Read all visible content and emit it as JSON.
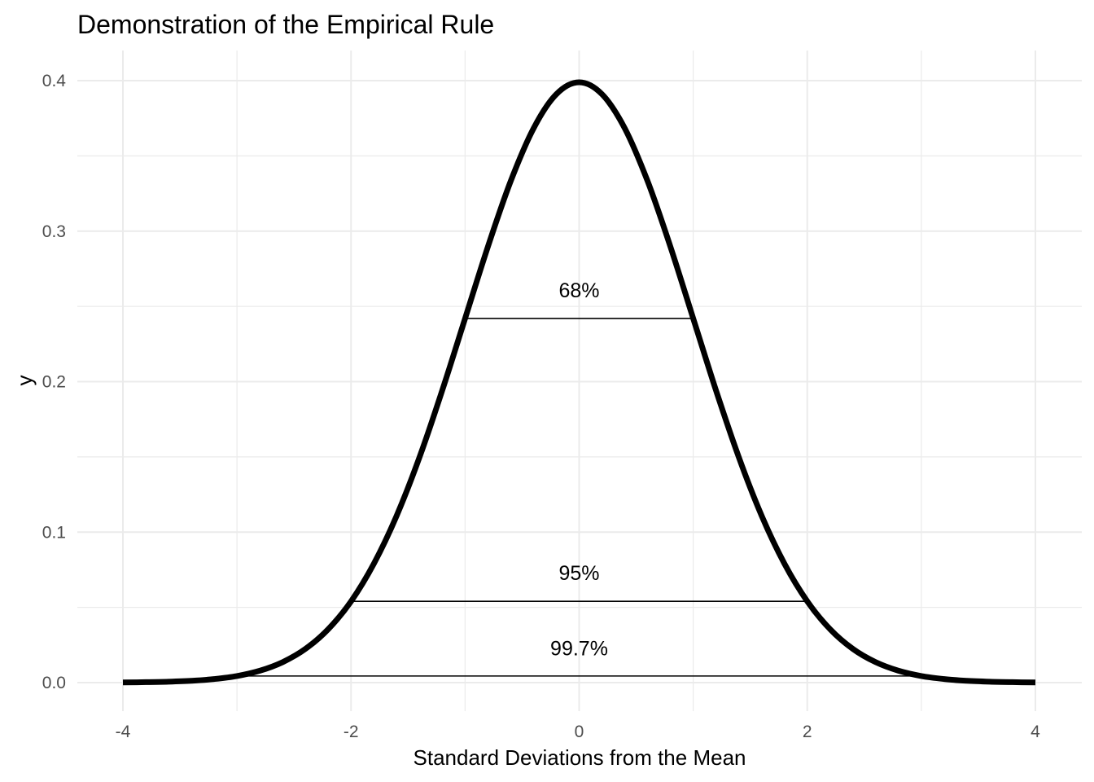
{
  "chart_data": {
    "type": "line",
    "title": "Demonstration of the Empirical Rule",
    "xlabel": "Standard Deviations from the Mean",
    "ylabel": "y",
    "xlim": [
      -4,
      4
    ],
    "ylim": [
      0,
      0.4
    ],
    "grid": true,
    "legend": "none",
    "x_ticks": [
      {
        "value": -4,
        "label": "-4"
      },
      {
        "value": -2,
        "label": "-2"
      },
      {
        "value": 0,
        "label": "0"
      },
      {
        "value": 2,
        "label": "2"
      },
      {
        "value": 4,
        "label": "4"
      }
    ],
    "y_ticks": [
      {
        "value": 0.0,
        "label": "0.0"
      },
      {
        "value": 0.1,
        "label": "0.1"
      },
      {
        "value": 0.2,
        "label": "0.2"
      },
      {
        "value": 0.3,
        "label": "0.3"
      },
      {
        "value": 0.4,
        "label": "0.4"
      }
    ],
    "series": [
      {
        "x": [
          -4.0,
          -3.8,
          -3.6,
          -3.4,
          -3.2,
          -3.0,
          -2.8,
          -2.6,
          -2.4,
          -2.2,
          -2.0,
          -1.8,
          -1.6,
          -1.4,
          -1.2,
          -1.0,
          -0.8,
          -0.6,
          -0.4,
          -0.2,
          0.0,
          0.2,
          0.4,
          0.6,
          0.8,
          1.0,
          1.2,
          1.4,
          1.6,
          1.8,
          2.0,
          2.2,
          2.4,
          2.6,
          2.8,
          3.0,
          3.2,
          3.4,
          3.6,
          3.8,
          4.0
        ],
        "y": [
          0.0001,
          0.0003,
          0.0006,
          0.0012,
          0.0024,
          0.0044,
          0.0079,
          0.0136,
          0.0224,
          0.0355,
          0.054,
          0.079,
          0.1109,
          0.1497,
          0.1942,
          0.242,
          0.2897,
          0.3332,
          0.3683,
          0.391,
          0.3989,
          0.391,
          0.3683,
          0.3332,
          0.2897,
          0.242,
          0.1942,
          0.1497,
          0.1109,
          0.079,
          0.054,
          0.0355,
          0.0224,
          0.0136,
          0.0079,
          0.0044,
          0.0024,
          0.0012,
          0.0006,
          0.0003,
          0.0001
        ]
      }
    ],
    "segments": [
      {
        "x_start": -1,
        "x_end": 1,
        "y": 0.242
      },
      {
        "x_start": -2,
        "x_end": 2,
        "y": 0.054
      },
      {
        "x_start": -3,
        "x_end": 3,
        "y": 0.0044
      }
    ],
    "annotations": [
      {
        "x": 0,
        "y": 0.261,
        "text": "68%"
      },
      {
        "x": 0,
        "y": 0.073,
        "text": "95%"
      },
      {
        "x": 0,
        "y": 0.023,
        "text": "99.7%"
      }
    ]
  }
}
